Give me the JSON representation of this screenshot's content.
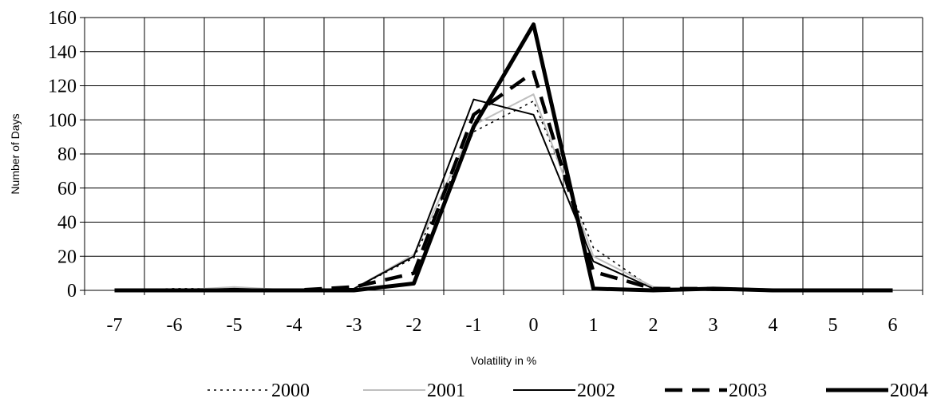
{
  "chart_data": {
    "type": "line",
    "title": "",
    "xlabel": "Volatility in %",
    "ylabel": "Number of Days",
    "categories": [
      "-7",
      "-6",
      "-5",
      "-4",
      "-3",
      "-2",
      "-1",
      "0",
      "1",
      "2",
      "3",
      "4",
      "5",
      "6"
    ],
    "ylim": [
      0,
      160
    ],
    "yticks": [
      "0",
      "20",
      "40",
      "60",
      "80",
      "100",
      "120",
      "140",
      "160"
    ],
    "grid": true,
    "legend_position": "bottom",
    "series": [
      {
        "name": "2000",
        "values": [
          0,
          1,
          1,
          0,
          1,
          19,
          93,
          111,
          25,
          1,
          0,
          0,
          0,
          0
        ],
        "color": "#000000",
        "style": "dotted"
      },
      {
        "name": "2001",
        "values": [
          0,
          0,
          2,
          0,
          1,
          21,
          97,
          115,
          20,
          2,
          0,
          0,
          0,
          0
        ],
        "color": "#bfbfbf",
        "style": "solid-thin"
      },
      {
        "name": "2002",
        "values": [
          0,
          0,
          1,
          0,
          1,
          20,
          112,
          103,
          17,
          1,
          0,
          0,
          0,
          0
        ],
        "color": "#000000",
        "style": "solid-thin"
      },
      {
        "name": "2003",
        "values": [
          0,
          0,
          0,
          0,
          2,
          10,
          103,
          128,
          11,
          1,
          1,
          0,
          0,
          0
        ],
        "color": "#000000",
        "style": "dashed"
      },
      {
        "name": "2004",
        "values": [
          0,
          0,
          0,
          0,
          0,
          4,
          96,
          156,
          1,
          0,
          1,
          0,
          0,
          0
        ],
        "color": "#000000",
        "style": "solid-thick"
      }
    ]
  }
}
